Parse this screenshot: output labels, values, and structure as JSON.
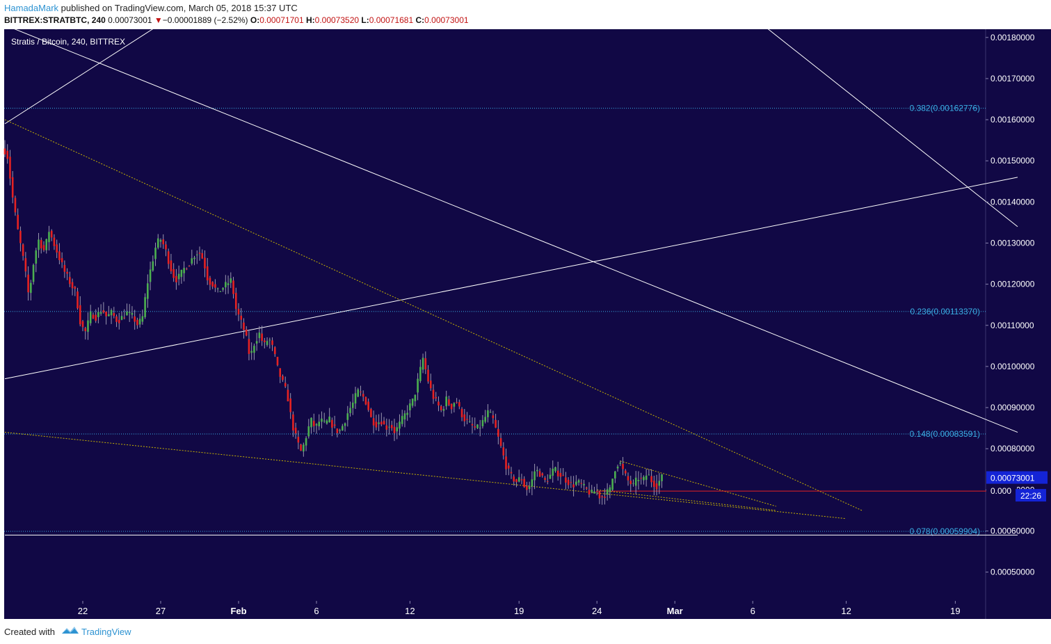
{
  "header": {
    "author": "HamadaMark",
    "published_text": " published on TradingView.com, March 05, 2018 15:37 UTC",
    "symbol_line": "BITTREX:STRATBTC, 240",
    "last": "0.00073001",
    "change_arrow": "▼",
    "change": "−0.00001889 (−2.52%)",
    "open_label": "O:",
    "open": "0.00071701",
    "high_label": "H:",
    "high": "0.00073520",
    "low_label": "L:",
    "low": "0.00071681",
    "close_label": "C:",
    "close": "0.00073001"
  },
  "footer": {
    "created_with": "Created with",
    "brand": "TradingView"
  },
  "colors": {
    "background": "#110845",
    "up": "#4caf50",
    "down": "#e52222",
    "fib": "#3ab0e6",
    "trend": "#ffffff",
    "dotted": "#c8b400",
    "price_tag": "#1424d6"
  },
  "chart_data": {
    "type": "candlestick",
    "title": "Stratis / Bitcoin, 240, BITTREX",
    "y_axis": {
      "min": 0.00043,
      "max": 0.00182,
      "ticks": [
        "0.00050000",
        "0.00060000",
        "0.00070000",
        "0.00080000",
        "0.00090000",
        "0.00100000",
        "0.00110000",
        "0.00120000",
        "0.00130000",
        "0.00140000",
        "0.00150000",
        "0.00160000",
        "0.00170000",
        "0.00180000"
      ],
      "tick_values": [
        0.0005,
        0.0006,
        0.0007,
        0.0008,
        0.0009,
        0.001,
        0.0011,
        0.0012,
        0.0013,
        0.0014,
        0.0015,
        0.0016,
        0.0017,
        0.0018
      ]
    },
    "x_axis": {
      "labels": [
        {
          "text": "22",
          "day": 5,
          "bold": false
        },
        {
          "text": "27",
          "day": 10,
          "bold": false
        },
        {
          "text": "Feb",
          "day": 15,
          "bold": true
        },
        {
          "text": "6",
          "day": 20,
          "bold": false
        },
        {
          "text": "12",
          "day": 26,
          "bold": false
        },
        {
          "text": "19",
          "day": 33,
          "bold": false
        },
        {
          "text": "24",
          "day": 38,
          "bold": false
        },
        {
          "text": "Mar",
          "day": 43,
          "bold": true
        },
        {
          "text": "6",
          "day": 48,
          "bold": false
        },
        {
          "text": "12",
          "day": 54,
          "bold": false
        },
        {
          "text": "19",
          "day": 61,
          "bold": false
        }
      ]
    },
    "fib_levels": [
      {
        "label": "0.382(0.00162776)",
        "value": 0.00162776
      },
      {
        "label": "0.236(0.00113370)",
        "value": 0.0011337
      },
      {
        "label": "0.148(0.00083591)",
        "value": 0.00083591
      },
      {
        "label": "0.078(0.00059904)",
        "value": 0.00059904
      }
    ],
    "current_price": {
      "label": "0.00073001",
      "value": 0.00073001
    },
    "support_price": {
      "label": "0.000",
      "value": 0.000697
    },
    "countdown": "22:26",
    "price_path": [
      [
        0.0,
        0.00153
      ],
      [
        0.3,
        0.00152
      ],
      [
        0.7,
        0.0014
      ],
      [
        1.0,
        0.00133
      ],
      [
        1.4,
        0.00125
      ],
      [
        1.7,
        0.00117
      ],
      [
        2.0,
        0.00125
      ],
      [
        2.3,
        0.00131
      ],
      [
        2.7,
        0.00128
      ],
      [
        3.0,
        0.00133
      ],
      [
        3.3,
        0.0013
      ],
      [
        3.6,
        0.00127
      ],
      [
        4.0,
        0.00123
      ],
      [
        4.4,
        0.0012
      ],
      [
        4.7,
        0.00118
      ],
      [
        5.0,
        0.00111
      ],
      [
        5.3,
        0.00108
      ],
      [
        5.7,
        0.00113
      ],
      [
        6.0,
        0.00112
      ],
      [
        6.4,
        0.00114
      ],
      [
        6.7,
        0.00112
      ],
      [
        7.0,
        0.00113
      ],
      [
        7.4,
        0.00111
      ],
      [
        7.7,
        0.00112
      ],
      [
        8.0,
        0.00113
      ],
      [
        8.4,
        0.00112
      ],
      [
        8.7,
        0.0011
      ],
      [
        9.0,
        0.00112
      ],
      [
        9.3,
        0.0012
      ],
      [
        9.6,
        0.00125
      ],
      [
        9.9,
        0.0013
      ],
      [
        10.2,
        0.00131
      ],
      [
        10.5,
        0.00128
      ],
      [
        10.8,
        0.00124
      ],
      [
        11.1,
        0.00121
      ],
      [
        11.4,
        0.00122
      ],
      [
        11.7,
        0.00124
      ],
      [
        12.0,
        0.00125
      ],
      [
        12.3,
        0.00127
      ],
      [
        12.6,
        0.00128
      ],
      [
        12.9,
        0.00126
      ],
      [
        13.2,
        0.00121
      ],
      [
        13.5,
        0.0012
      ],
      [
        13.8,
        0.00118
      ],
      [
        14.1,
        0.00119
      ],
      [
        14.4,
        0.0012
      ],
      [
        14.7,
        0.00121
      ],
      [
        15.0,
        0.00114
      ],
      [
        15.3,
        0.00111
      ],
      [
        15.6,
        0.00108
      ],
      [
        15.9,
        0.00102
      ],
      [
        16.2,
        0.00106
      ],
      [
        16.5,
        0.00108
      ],
      [
        16.8,
        0.00105
      ],
      [
        17.1,
        0.00107
      ],
      [
        17.4,
        0.00104
      ],
      [
        17.7,
        0.00099
      ],
      [
        18.0,
        0.00096
      ],
      [
        18.3,
        0.00093
      ],
      [
        18.6,
        0.00086
      ],
      [
        18.9,
        0.00082
      ],
      [
        19.2,
        0.00079
      ],
      [
        19.5,
        0.00083
      ],
      [
        19.8,
        0.00087
      ],
      [
        20.1,
        0.00085
      ],
      [
        20.4,
        0.00087
      ],
      [
        20.7,
        0.00086
      ],
      [
        21.0,
        0.00087
      ],
      [
        21.3,
        0.00085
      ],
      [
        21.6,
        0.00084
      ],
      [
        21.9,
        0.00086
      ],
      [
        22.2,
        0.00089
      ],
      [
        22.5,
        0.00091
      ],
      [
        22.8,
        0.00094
      ],
      [
        23.1,
        0.00093
      ],
      [
        23.4,
        0.00091
      ],
      [
        23.7,
        0.00087
      ],
      [
        24.0,
        0.00086
      ],
      [
        24.3,
        0.00087
      ],
      [
        24.6,
        0.00085
      ],
      [
        24.9,
        0.00086
      ],
      [
        25.2,
        0.00084
      ],
      [
        25.5,
        0.00086
      ],
      [
        25.8,
        0.00088
      ],
      [
        26.1,
        0.0009
      ],
      [
        26.4,
        0.00092
      ],
      [
        26.7,
        0.00097
      ],
      [
        27.0,
        0.00102
      ],
      [
        27.3,
        0.00097
      ],
      [
        27.6,
        0.00093
      ],
      [
        27.9,
        0.00091
      ],
      [
        28.2,
        0.00089
      ],
      [
        28.5,
        0.00092
      ],
      [
        28.8,
        0.0009
      ],
      [
        29.1,
        0.00092
      ],
      [
        29.4,
        0.00089
      ],
      [
        29.7,
        0.00087
      ],
      [
        30.0,
        0.00086
      ],
      [
        30.3,
        0.00085
      ],
      [
        30.6,
        0.00085
      ],
      [
        30.9,
        0.00087
      ],
      [
        31.2,
        0.00089
      ],
      [
        31.5,
        0.00087
      ],
      [
        31.8,
        0.00083
      ],
      [
        32.1,
        0.00079
      ],
      [
        32.4,
        0.00075
      ],
      [
        32.7,
        0.00073
      ],
      [
        33.0,
        0.00072
      ],
      [
        33.3,
        0.00073
      ],
      [
        33.6,
        0.0007
      ],
      [
        33.9,
        0.00071
      ],
      [
        34.2,
        0.00075
      ],
      [
        34.5,
        0.00074
      ],
      [
        34.8,
        0.00072
      ],
      [
        35.1,
        0.00073
      ],
      [
        35.4,
        0.00075
      ],
      [
        35.7,
        0.00074
      ],
      [
        36.0,
        0.00073
      ],
      [
        36.3,
        0.00072
      ],
      [
        36.6,
        0.00071
      ],
      [
        36.9,
        0.00072
      ],
      [
        37.2,
        0.00071
      ],
      [
        37.5,
        0.0007
      ],
      [
        37.8,
        0.00069
      ],
      [
        38.1,
        0.0007
      ],
      [
        38.4,
        0.00068
      ],
      [
        38.7,
        0.00069
      ],
      [
        39.0,
        0.0007
      ],
      [
        39.3,
        0.00075
      ],
      [
        39.6,
        0.00077
      ],
      [
        39.9,
        0.00074
      ],
      [
        40.2,
        0.00072
      ],
      [
        40.5,
        0.00071
      ],
      [
        40.8,
        0.00073
      ],
      [
        41.1,
        0.00072
      ],
      [
        41.4,
        0.00074
      ],
      [
        41.7,
        0.00072
      ],
      [
        42.0,
        0.00071
      ],
      [
        42.3,
        0.00073
      ]
    ],
    "trendlines": [
      {
        "kind": "solid",
        "points": [
          [
            0.0,
            0.00159
          ],
          [
            14.0,
            0.00193
          ]
        ]
      },
      {
        "kind": "solid",
        "points": [
          [
            0.0,
            0.00183
          ],
          [
            65.0,
            0.00084
          ]
        ]
      },
      {
        "kind": "solid",
        "points": [
          [
            0.0,
            0.00097
          ],
          [
            65.0,
            0.00146
          ]
        ]
      },
      {
        "kind": "solid",
        "points": [
          [
            48.0,
            0.00185
          ],
          [
            65.0,
            0.00134
          ]
        ]
      },
      {
        "kind": "solid",
        "points": [
          [
            0.0,
            0.00059
          ],
          [
            65.0,
            0.00059
          ]
        ]
      },
      {
        "kind": "dotted",
        "points": [
          [
            0.0,
            0.0016
          ],
          [
            55.0,
            0.00065
          ]
        ]
      },
      {
        "kind": "dotted",
        "points": [
          [
            0.0,
            0.00084
          ],
          [
            54.0,
            0.00063
          ]
        ]
      },
      {
        "kind": "dotted",
        "points": [
          [
            39.5,
            0.00077
          ],
          [
            49.5,
            0.00066
          ]
        ]
      },
      {
        "kind": "dotted",
        "points": [
          [
            38.0,
            0.0007
          ],
          [
            49.5,
            0.00065
          ]
        ]
      },
      {
        "kind": "red",
        "points": [
          [
            38.0,
            0.000697
          ],
          [
            65.0,
            0.000697
          ]
        ]
      }
    ]
  }
}
